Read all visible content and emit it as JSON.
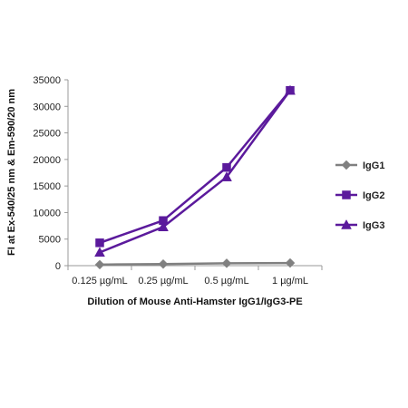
{
  "chart_data": {
    "type": "line",
    "title": "",
    "xlabel": "Dilution of Mouse Anti-Hamster IgG1/IgG3-PE",
    "ylabel": "FI at Ex-540/25 nm & Em-590/20 nm",
    "categories": [
      "0.125 µg/mL",
      "0.25 µg/mL",
      "0.5 µg/mL",
      "1 µg/mL"
    ],
    "ylim": [
      0,
      35000
    ],
    "yticks": [
      0,
      5000,
      10000,
      15000,
      20000,
      25000,
      30000,
      35000
    ],
    "grid": false,
    "legend_position": "right",
    "series": [
      {
        "name": "IgG1",
        "marker": "diamond",
        "color": "#808080",
        "values": [
          200,
          300,
          450,
          500
        ]
      },
      {
        "name": "IgG2",
        "marker": "square",
        "color": "#5b1a9c",
        "values": [
          4300,
          8500,
          18500,
          33000
        ]
      },
      {
        "name": "IgG3",
        "marker": "triangle",
        "color": "#5b1a9c",
        "values": [
          2500,
          7300,
          16700,
          33000
        ]
      }
    ]
  }
}
